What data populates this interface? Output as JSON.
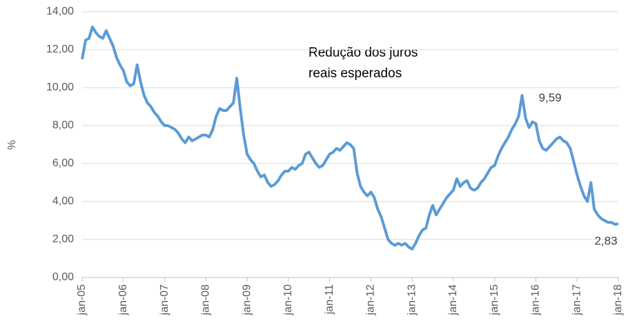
{
  "chart_data": {
    "type": "line",
    "y_label": "%",
    "note": [
      "Redução dos juros",
      "reais esperados"
    ],
    "x": [
      "2005-01",
      "2005-02",
      "2005-03",
      "2005-04",
      "2005-05",
      "2005-06",
      "2005-07",
      "2005-08",
      "2005-09",
      "2005-10",
      "2005-11",
      "2005-12",
      "2006-01",
      "2006-02",
      "2006-03",
      "2006-04",
      "2006-05",
      "2006-06",
      "2006-07",
      "2006-08",
      "2006-09",
      "2006-10",
      "2006-11",
      "2006-12",
      "2007-01",
      "2007-02",
      "2007-03",
      "2007-04",
      "2007-05",
      "2007-06",
      "2007-07",
      "2007-08",
      "2007-09",
      "2007-10",
      "2007-11",
      "2007-12",
      "2008-01",
      "2008-02",
      "2008-03",
      "2008-04",
      "2008-05",
      "2008-06",
      "2008-07",
      "2008-08",
      "2008-09",
      "2008-10",
      "2008-11",
      "2008-12",
      "2009-01",
      "2009-02",
      "2009-03",
      "2009-04",
      "2009-05",
      "2009-06",
      "2009-07",
      "2009-08",
      "2009-09",
      "2009-10",
      "2009-11",
      "2009-12",
      "2010-01",
      "2010-02",
      "2010-03",
      "2010-04",
      "2010-05",
      "2010-06",
      "2010-07",
      "2010-08",
      "2010-09",
      "2010-10",
      "2010-11",
      "2010-12",
      "2011-01",
      "2011-02",
      "2011-03",
      "2011-04",
      "2011-05",
      "2011-06",
      "2011-07",
      "2011-08",
      "2011-09",
      "2011-10",
      "2011-11",
      "2011-12",
      "2012-01",
      "2012-02",
      "2012-03",
      "2012-04",
      "2012-05",
      "2012-06",
      "2012-07",
      "2012-08",
      "2012-09",
      "2012-10",
      "2012-11",
      "2012-12",
      "2013-01",
      "2013-02",
      "2013-03",
      "2013-04",
      "2013-05",
      "2013-06",
      "2013-07",
      "2013-08",
      "2013-09",
      "2013-10",
      "2013-11",
      "2013-12",
      "2014-01",
      "2014-02",
      "2014-03",
      "2014-04",
      "2014-05",
      "2014-06",
      "2014-07",
      "2014-08",
      "2014-09",
      "2014-10",
      "2014-11",
      "2014-12",
      "2015-01",
      "2015-02",
      "2015-03",
      "2015-04",
      "2015-05",
      "2015-06",
      "2015-07",
      "2015-08",
      "2015-09",
      "2015-10",
      "2015-11",
      "2015-12",
      "2016-01",
      "2016-02",
      "2016-03",
      "2016-04",
      "2016-05",
      "2016-06",
      "2016-07",
      "2016-08",
      "2016-09",
      "2016-10",
      "2016-11",
      "2016-12",
      "2017-01",
      "2017-02",
      "2017-03",
      "2017-04",
      "2017-05",
      "2017-06",
      "2017-07",
      "2017-08",
      "2017-09",
      "2017-10",
      "2017-11",
      "2017-12",
      "2018-01"
    ],
    "series": [
      {
        "color": "#5b9bd5",
        "values": [
          11.5,
          12.5,
          12.6,
          13.2,
          12.9,
          12.7,
          12.6,
          13.0,
          12.6,
          12.2,
          11.6,
          11.2,
          10.9,
          10.3,
          10.1,
          10.2,
          11.2,
          10.3,
          9.6,
          9.2,
          9.0,
          8.7,
          8.5,
          8.2,
          8.0,
          8.0,
          7.9,
          7.8,
          7.6,
          7.3,
          7.1,
          7.4,
          7.2,
          7.3,
          7.4,
          7.5,
          7.5,
          7.4,
          7.8,
          8.5,
          8.9,
          8.8,
          8.8,
          9.0,
          9.2,
          10.5,
          8.9,
          7.5,
          6.5,
          6.2,
          6.0,
          5.6,
          5.3,
          5.4,
          5.0,
          4.8,
          4.9,
          5.1,
          5.4,
          5.6,
          5.6,
          5.8,
          5.7,
          5.9,
          6.0,
          6.5,
          6.6,
          6.3,
          6.0,
          5.8,
          5.9,
          6.2,
          6.5,
          6.6,
          6.8,
          6.7,
          6.9,
          7.1,
          7.0,
          6.8,
          5.5,
          4.8,
          4.5,
          4.3,
          4.5,
          4.2,
          3.6,
          3.2,
          2.6,
          2.0,
          1.8,
          1.7,
          1.8,
          1.7,
          1.8,
          1.6,
          1.5,
          1.8,
          2.2,
          2.5,
          2.6,
          3.3,
          3.8,
          3.3,
          3.6,
          3.9,
          4.2,
          4.4,
          4.6,
          5.2,
          4.8,
          5.0,
          5.1,
          4.7,
          4.6,
          4.7,
          5.0,
          5.2,
          5.5,
          5.8,
          5.9,
          6.4,
          6.8,
          7.1,
          7.4,
          7.8,
          8.1,
          8.5,
          9.59,
          8.4,
          7.9,
          8.2,
          8.1,
          7.2,
          6.8,
          6.7,
          6.9,
          7.1,
          7.3,
          7.4,
          7.2,
          7.1,
          6.8,
          6.1,
          5.4,
          4.8,
          4.3,
          4.0,
          5.0,
          3.6,
          3.3,
          3.1,
          3.0,
          2.9,
          2.9,
          2.8,
          2.83
        ]
      }
    ],
    "annotations": [
      {
        "text": "9,59",
        "x": "2015-09",
        "y": 9.59
      },
      {
        "text": "2,83",
        "x": "2018-01",
        "y": 2.83
      }
    ],
    "xlim": [
      "2005-01",
      "2018-01"
    ],
    "xticks": [
      {
        "value": "2005-01",
        "label": "jan-05"
      },
      {
        "value": "2006-01",
        "label": "jan-06"
      },
      {
        "value": "2007-01",
        "label": "jan-07"
      },
      {
        "value": "2008-01",
        "label": "jan-08"
      },
      {
        "value": "2009-01",
        "label": "jan-09"
      },
      {
        "value": "2010-01",
        "label": "jan-10"
      },
      {
        "value": "2011-01",
        "label": "jan-11"
      },
      {
        "value": "2012-01",
        "label": "jan-12"
      },
      {
        "value": "2013-01",
        "label": "jan-13"
      },
      {
        "value": "2014-01",
        "label": "jan-14"
      },
      {
        "value": "2015-01",
        "label": "jan-15"
      },
      {
        "value": "2016-01",
        "label": "jan-16"
      },
      {
        "value": "2017-01",
        "label": "jan-17"
      },
      {
        "value": "2018-01",
        "label": "jan-18"
      }
    ],
    "ylim": [
      0,
      14
    ],
    "yticks": [
      {
        "value": 0,
        "label": "0,00"
      },
      {
        "value": 2,
        "label": "2,00"
      },
      {
        "value": 4,
        "label": "4,00"
      },
      {
        "value": 6,
        "label": "6,00"
      },
      {
        "value": 8,
        "label": "8,00"
      },
      {
        "value": 10,
        "label": "10,00"
      },
      {
        "value": 12,
        "label": "12,00"
      },
      {
        "value": 14,
        "label": "14,00"
      }
    ],
    "grid": true
  }
}
